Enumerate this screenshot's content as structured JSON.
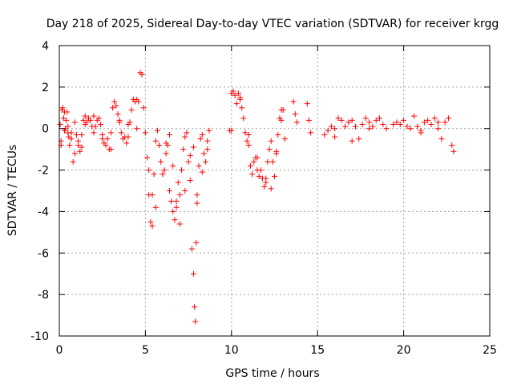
{
  "chart_data": {
    "type": "scatter",
    "title": "Day 218 of 2025, Sidereal Day-to-day VTEC variation (SDTVAR) for receiver krgg",
    "xlabel": "GPS time / hours",
    "ylabel": "SDTVAR / TECUs",
    "xlim": [
      0,
      25
    ],
    "ylim": [
      -10,
      4
    ],
    "xticks": [
      0,
      5,
      10,
      15,
      20,
      25
    ],
    "yticks": [
      -10,
      -8,
      -6,
      -4,
      -2,
      0,
      2,
      4
    ],
    "grid": true,
    "marker": "plus",
    "series": [
      {
        "name": "SDTVAR",
        "color": "#ff0000",
        "x": [
          0.05,
          0.1,
          0.15,
          0.2,
          0.25,
          0.3,
          0.35,
          0.4,
          0.45,
          0.5,
          0.55,
          0.6,
          0.7,
          0.8,
          0.9,
          1.0,
          1.1,
          1.2,
          1.3,
          1.4,
          1.5,
          1.6,
          1.7,
          1.8,
          1.9,
          2.0,
          2.1,
          2.2,
          2.3,
          2.4,
          2.5,
          2.6,
          2.7,
          2.8,
          2.9,
          3.0,
          3.1,
          3.2,
          3.3,
          3.4,
          3.5,
          3.6,
          3.7,
          3.8,
          3.9,
          4.0,
          4.1,
          4.2,
          4.3,
          4.4,
          4.5,
          4.6,
          4.7,
          4.8,
          4.9,
          5.0,
          5.1,
          5.2,
          5.3,
          5.4,
          5.5,
          5.6,
          5.7,
          5.8,
          5.9,
          6.0,
          6.1,
          6.2,
          6.3,
          6.4,
          6.5,
          6.6,
          6.7,
          6.8,
          6.9,
          7.0,
          7.1,
          7.2,
          7.3,
          7.4,
          7.5,
          7.6,
          7.7,
          7.8,
          7.85,
          7.9,
          7.95,
          8.0,
          8.1,
          8.2,
          8.3,
          8.4,
          8.5,
          8.6,
          8.7,
          9.9,
          10.0,
          10.1,
          10.2,
          10.3,
          10.4,
          10.5,
          10.6,
          10.7,
          10.8,
          10.9,
          11.0,
          11.1,
          11.2,
          11.3,
          11.4,
          11.5,
          11.6,
          11.7,
          11.8,
          11.9,
          12.0,
          12.1,
          12.2,
          12.3,
          12.4,
          12.5,
          12.6,
          12.7,
          12.8,
          12.9,
          13.0,
          13.1,
          13.6,
          13.7,
          13.8,
          14.4,
          14.5,
          14.6,
          15.4,
          15.6,
          15.8,
          16.0,
          16.2,
          16.4,
          16.6,
          16.8,
          17.0,
          17.2,
          17.4,
          17.6,
          17.8,
          18.0,
          18.2,
          18.4,
          18.6,
          18.8,
          19.0,
          19.4,
          19.6,
          19.8,
          20.0,
          20.2,
          20.4,
          20.6,
          20.8,
          21.0,
          21.2,
          21.4,
          21.6,
          21.8,
          22.0,
          22.2,
          22.4,
          22.6,
          22.8,
          22.9,
          0.1,
          0.3,
          0.5,
          0.7,
          0.9,
          1.1,
          1.3,
          1.5,
          2.0,
          2.5,
          3.0,
          3.5,
          4.0,
          4.5,
          5.2,
          5.4,
          5.6,
          6.2,
          6.4,
          6.6,
          6.8,
          7.0,
          7.3,
          7.6,
          7.8,
          8.0,
          8.3,
          8.6,
          10.0,
          10.5,
          11.0,
          11.5,
          12.0,
          12.3,
          12.6,
          12.9,
          16.0,
          17.0,
          18.0,
          21.0,
          22.0
        ],
        "y": [
          0.2,
          -0.6,
          0.9,
          1.0,
          0.5,
          -0.1,
          0.0,
          0.4,
          0.8,
          0.1,
          -0.4,
          -0.8,
          -0.2,
          -1.6,
          -1.2,
          -0.3,
          -0.8,
          -1.1,
          -0.3,
          0.4,
          0.6,
          0.3,
          0.5,
          0.4,
          0.1,
          -0.2,
          0.1,
          0.4,
          0.5,
          0.2,
          -0.5,
          -0.7,
          -0.8,
          -0.5,
          -1.0,
          -0.2,
          1.0,
          1.3,
          1.1,
          0.7,
          0.3,
          -0.2,
          -0.5,
          -0.4,
          -0.7,
          -0.4,
          0.3,
          0.9,
          1.4,
          1.3,
          1.4,
          1.3,
          2.7,
          2.6,
          1.0,
          -0.2,
          -1.4,
          -2.0,
          -4.5,
          -3.2,
          -2.2,
          -0.6,
          -0.1,
          -0.8,
          -1.6,
          -2.2,
          -2.0,
          -1.2,
          -0.8,
          -3.0,
          -3.5,
          -4.0,
          -4.4,
          -3.5,
          -2.6,
          -3.2,
          -2.0,
          -1.0,
          -0.4,
          -0.2,
          -1.6,
          -2.5,
          -5.8,
          -7.0,
          -8.6,
          -9.3,
          -5.5,
          -3.6,
          -1.8,
          -0.5,
          -0.3,
          -1.2,
          -1.6,
          -1.0,
          -0.1,
          -0.1,
          1.7,
          1.8,
          1.6,
          1.2,
          1.7,
          1.5,
          1.0,
          0.5,
          -0.2,
          -0.6,
          -0.8,
          -1.8,
          -2.2,
          -1.6,
          -1.4,
          -2.0,
          -2.3,
          -2.0,
          -2.4,
          -2.8,
          -2.4,
          -1.6,
          -1.0,
          -0.6,
          -1.6,
          -2.3,
          -1.2,
          -0.3,
          0.5,
          0.9,
          0.9,
          -0.5,
          1.3,
          0.7,
          0.3,
          1.2,
          0.4,
          -0.2,
          -0.3,
          -0.1,
          0.1,
          0.0,
          0.5,
          0.4,
          0.1,
          0.3,
          0.4,
          0.1,
          -0.5,
          0.2,
          0.5,
          0.3,
          0.1,
          0.4,
          0.5,
          0.2,
          0.0,
          0.2,
          0.3,
          0.2,
          0.4,
          0.1,
          0.0,
          0.6,
          0.1,
          -0.1,
          0.3,
          0.4,
          0.2,
          0.5,
          0.0,
          -0.5,
          0.3,
          0.5,
          -0.8,
          -1.1,
          -0.8,
          0.8,
          -0.2,
          -0.5,
          0.3,
          -0.6,
          -0.9,
          0.2,
          0.6,
          -0.3,
          -1.0,
          0.4,
          0.2,
          0.0,
          -3.2,
          -4.7,
          -3.8,
          -0.7,
          -0.3,
          -1.8,
          -3.8,
          -4.6,
          -3.0,
          -1.3,
          -0.9,
          -3.2,
          -2.1,
          -0.6,
          -0.1,
          1.4,
          -0.3,
          -1.4,
          -2.6,
          -2.9,
          -1.1,
          0.4,
          -0.4,
          -0.6,
          0.0,
          -0.2,
          0.3
        ]
      }
    ]
  }
}
